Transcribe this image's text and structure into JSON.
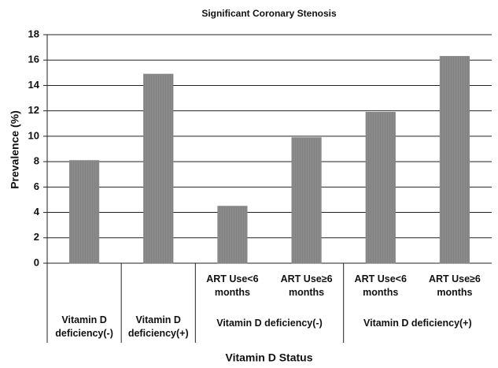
{
  "chart_data": {
    "type": "bar",
    "title": "Significant Coronary Stenosis",
    "x_label": "Vitamin D Status",
    "y_label": "Prevalence (%)",
    "groups": [
      {
        "name": "Vitamin D deficiency(-)",
        "categories": [
          null
        ],
        "values": [
          8.1
        ]
      },
      {
        "name": "Vitamin D deficiency(+)",
        "categories": [
          null
        ],
        "values": [
          14.9
        ]
      },
      {
        "name": "Vitamin D deficiency(-)",
        "categories": [
          "ART Use<6 months",
          "ART Use≥6 months"
        ],
        "values": [
          4.5,
          9.9
        ]
      },
      {
        "name": "Vitamin D deficiency(+)",
        "categories": [
          "ART Use<6 months",
          "ART Use≥6 months"
        ],
        "values": [
          11.9,
          16.3
        ]
      }
    ],
    "color": "#858585",
    "ylim": [
      0,
      18
    ],
    "yticks": [
      0,
      2,
      4,
      6,
      8,
      10,
      12,
      14,
      16,
      18
    ],
    "grid": true
  }
}
